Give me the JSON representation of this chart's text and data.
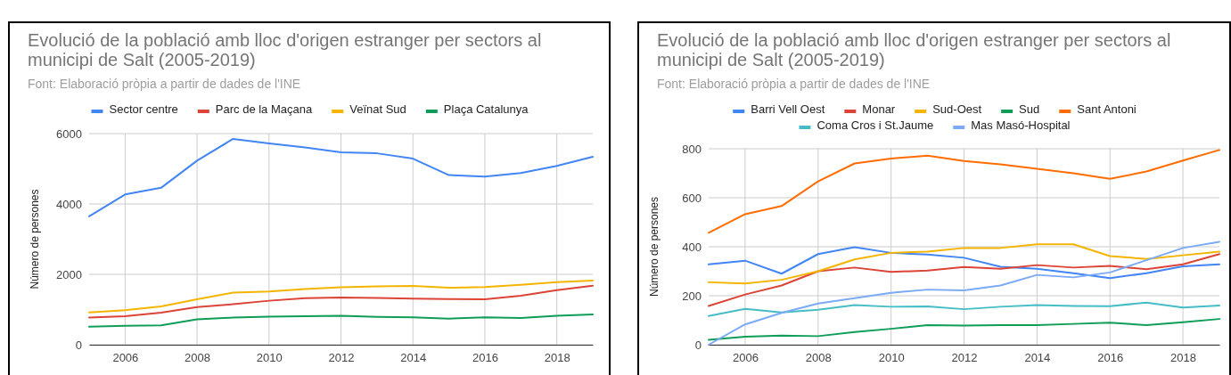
{
  "chart_data": [
    {
      "type": "line",
      "title": "Evolució de la població amb lloc d'origen estranger per sectors al municipi de Salt (2005-2019)",
      "subtitle": "Font: Elaboració pròpia a partir de dades de l'INE",
      "ylabel": "Número de persones",
      "x": [
        2005,
        2006,
        2007,
        2008,
        2009,
        2010,
        2011,
        2012,
        2013,
        2014,
        2015,
        2016,
        2017,
        2018,
        2019
      ],
      "xlim": [
        2005,
        2019
      ],
      "xticks": [
        2006,
        2008,
        2010,
        2012,
        2014,
        2016,
        2018
      ],
      "ylim": [
        0,
        6000
      ],
      "yticks": [
        0,
        2000,
        4000,
        6000
      ],
      "grid": true,
      "legend": "top",
      "series": [
        {
          "name": "Sector centre",
          "color": "#4285f4",
          "values": [
            3650,
            4270,
            4460,
            5230,
            5850,
            5720,
            5610,
            5470,
            5440,
            5290,
            4820,
            4780,
            4880,
            5080,
            5340
          ]
        },
        {
          "name": "Parc de la Maçana",
          "color": "#db4437",
          "values": [
            770,
            810,
            910,
            1070,
            1150,
            1250,
            1320,
            1340,
            1330,
            1310,
            1300,
            1290,
            1390,
            1550,
            1680
          ]
        },
        {
          "name": "Veïnat Sud",
          "color": "#f4b400",
          "values": [
            920,
            980,
            1090,
            1290,
            1480,
            1510,
            1580,
            1630,
            1660,
            1670,
            1620,
            1640,
            1700,
            1780,
            1820
          ]
        },
        {
          "name": "Plaça Catalunya",
          "color": "#0f9d58",
          "values": [
            510,
            540,
            550,
            720,
            770,
            800,
            810,
            820,
            790,
            780,
            740,
            780,
            760,
            820,
            860
          ]
        }
      ]
    },
    {
      "type": "line",
      "title": "Evolució de la població amb lloc d'origen estranger per sectors al municipi de Salt (2005-2019)",
      "subtitle": "Font: Elaboració pròpia a partir de dades de l'INE",
      "ylabel": "Número de persones",
      "x": [
        2005,
        2006,
        2007,
        2008,
        2009,
        2010,
        2011,
        2012,
        2013,
        2014,
        2015,
        2016,
        2017,
        2018,
        2019
      ],
      "xlim": [
        2005,
        2019
      ],
      "xticks": [
        2006,
        2008,
        2010,
        2012,
        2014,
        2016,
        2018
      ],
      "ylim": [
        0,
        800
      ],
      "yticks": [
        0,
        200,
        400,
        600,
        800
      ],
      "grid": true,
      "legend": "top",
      "series": [
        {
          "name": "Barri Vell Oest",
          "color": "#4285f4",
          "values": [
            328,
            343,
            290,
            370,
            398,
            375,
            368,
            355,
            318,
            310,
            292,
            272,
            292,
            320,
            328
          ]
        },
        {
          "name": "Monar",
          "color": "#db4437",
          "values": [
            158,
            205,
            242,
            300,
            315,
            297,
            303,
            317,
            310,
            325,
            315,
            322,
            308,
            328,
            370
          ]
        },
        {
          "name": "Sud-Oest",
          "color": "#f4b400",
          "values": [
            255,
            250,
            265,
            300,
            348,
            375,
            380,
            395,
            395,
            410,
            410,
            362,
            350,
            365,
            380
          ]
        },
        {
          "name": "Sud",
          "color": "#0f9d58",
          "values": [
            20,
            33,
            37,
            35,
            52,
            65,
            80,
            78,
            80,
            80,
            85,
            90,
            80,
            92,
            105
          ]
        },
        {
          "name": "Sant Antoni",
          "color": "#ff6d01",
          "values": [
            457,
            533,
            566,
            667,
            740,
            760,
            772,
            750,
            736,
            718,
            700,
            677,
            707,
            752,
            795
          ]
        },
        {
          "name": "Coma Cros i St.Jaume",
          "color": "#46bdc6",
          "values": [
            117,
            146,
            132,
            143,
            162,
            155,
            156,
            145,
            155,
            162,
            158,
            157,
            172,
            152,
            160
          ]
        },
        {
          "name": "Mas Masó-Hospital",
          "color": "#7baaf7",
          "values": [
            0,
            83,
            130,
            168,
            190,
            212,
            225,
            222,
            242,
            285,
            275,
            295,
            345,
            395,
            420
          ]
        }
      ]
    }
  ]
}
